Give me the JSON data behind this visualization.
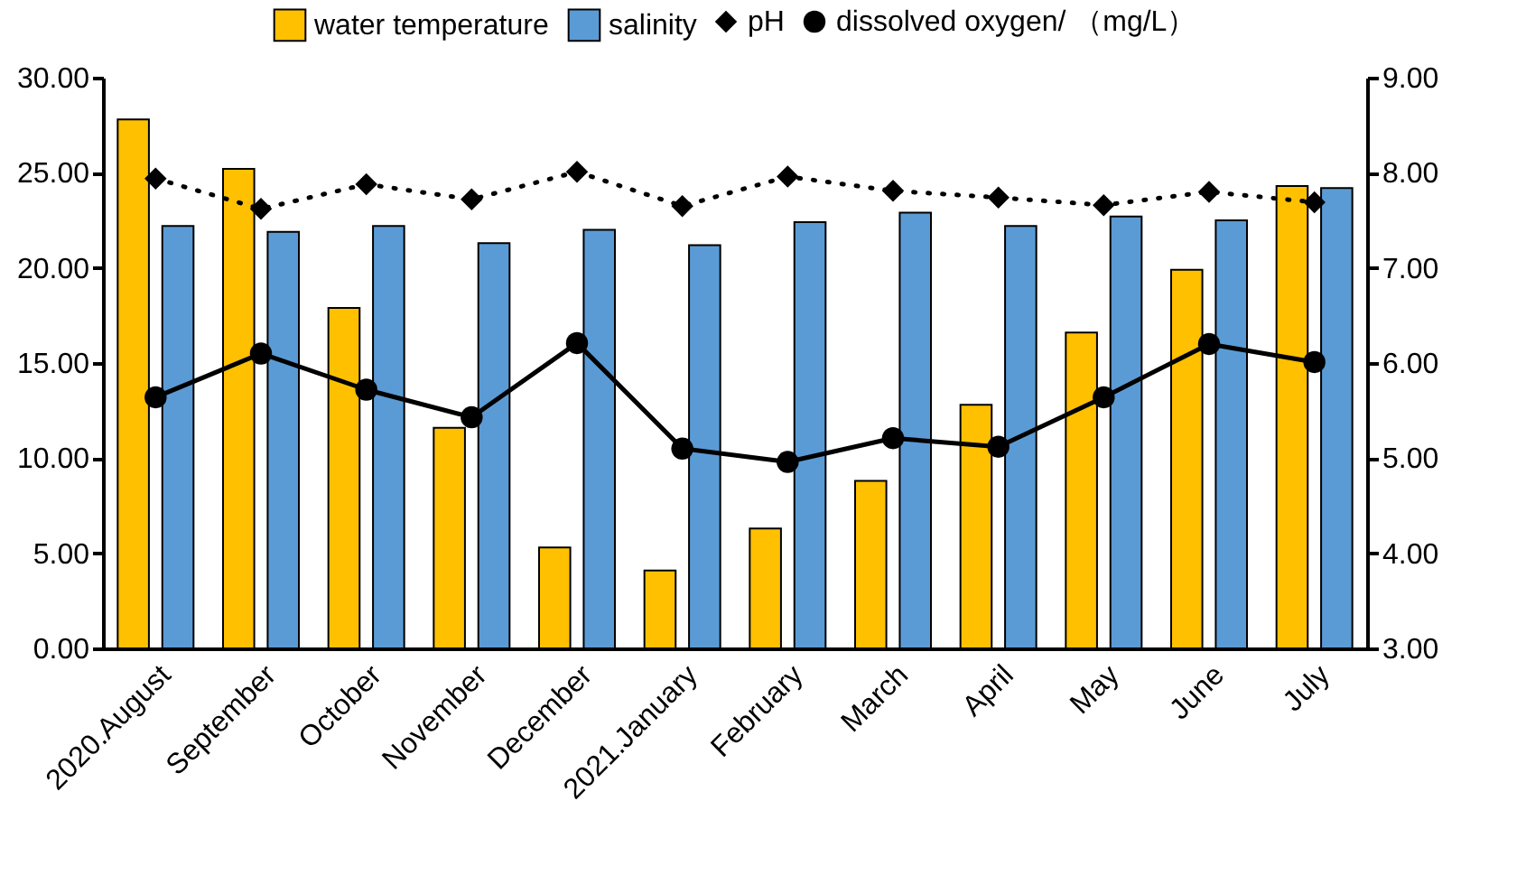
{
  "chart_data": {
    "type": "bar",
    "categories": [
      "2020.August",
      "September",
      "October",
      "November",
      "December",
      "2021.January",
      "February",
      "March",
      "April",
      "May",
      "June",
      "July"
    ],
    "series": [
      {
        "name": "water temperature",
        "color": "#ffc000",
        "values": [
          27.8,
          25.2,
          17.9,
          11.6,
          5.3,
          4.1,
          6.3,
          8.8,
          12.8,
          16.6,
          19.9,
          24.3
        ]
      },
      {
        "name": "salinity",
        "color": "#5b9bd5",
        "values": [
          22.2,
          21.9,
          22.2,
          21.3,
          22.0,
          21.2,
          22.4,
          22.9,
          22.2,
          22.7,
          22.5,
          24.2
        ]
      },
      {
        "name": "pH",
        "type": "line",
        "axis": "y2",
        "color": "#000000",
        "marker": "diamond",
        "line_style": "dotted",
        "values": [
          7.94,
          7.62,
          7.88,
          7.72,
          8.01,
          7.65,
          7.96,
          7.81,
          7.74,
          7.66,
          7.8,
          7.69
        ]
      },
      {
        "name": "dissolved oxygen/ （mg/L）",
        "type": "line",
        "axis": "y2",
        "color": "#000000",
        "marker": "circle",
        "line_style": "solid",
        "values": [
          5.64,
          6.1,
          5.72,
          5.43,
          6.21,
          5.1,
          4.96,
          5.21,
          5.12,
          5.64,
          6.2,
          6.01
        ]
      }
    ],
    "ylim": [
      0,
      30
    ],
    "yticks": [
      {
        "value": 0,
        "label": "0.00"
      },
      {
        "value": 5,
        "label": "5.00"
      },
      {
        "value": 10,
        "label": "10.00"
      },
      {
        "value": 15,
        "label": "15.00"
      },
      {
        "value": 20,
        "label": "20.00"
      },
      {
        "value": 25,
        "label": "25.00"
      },
      {
        "value": 30,
        "label": "30.00"
      }
    ],
    "y2lim": [
      3,
      9
    ],
    "y2ticks": [
      {
        "value": 3,
        "label": "3.00"
      },
      {
        "value": 4,
        "label": "4.00"
      },
      {
        "value": 5,
        "label": "5.00"
      },
      {
        "value": 6,
        "label": "6.00"
      },
      {
        "value": 7,
        "label": "7.00"
      },
      {
        "value": 8,
        "label": "8.00"
      },
      {
        "value": 9,
        "label": "9.00"
      }
    ],
    "grid": false,
    "legend": "top"
  }
}
